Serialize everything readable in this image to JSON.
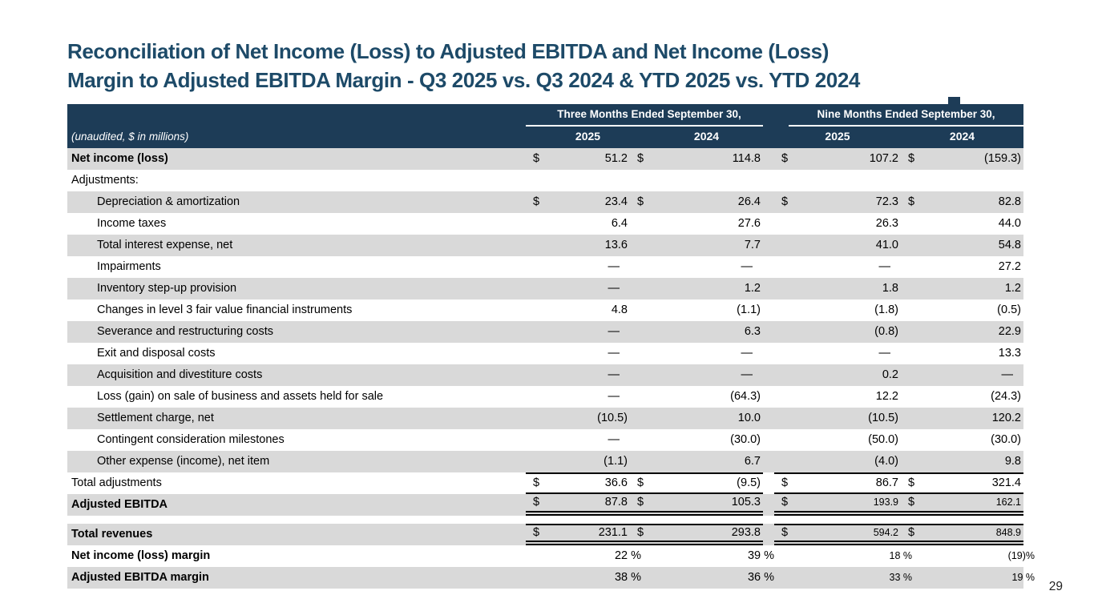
{
  "slide": {
    "title_line1": "Reconciliation of Net Income (Loss) to Adjusted EBITDA and Net Income (Loss)",
    "title_line2": "Margin to Adjusted EBITDA Margin - Q3 2025 vs. Q3 2024 & YTD 2025 vs. YTD 2024",
    "page_number": "29"
  },
  "colors": {
    "header_bg": "#1d3c57",
    "title_text": "#1d4a68",
    "row_shade": "#d9d9d9"
  },
  "table": {
    "unit_note": "(unaudited, $ in millions)",
    "dollar_sign": "$",
    "col_groups": [
      "Three Months Ended September 30,",
      "Nine Months Ended September 30,"
    ],
    "years": [
      "2025",
      "2024",
      "2025",
      "2024"
    ],
    "rows": [
      {
        "label": "Net income (loss)",
        "bold": true,
        "shaded": true,
        "dollar": true,
        "values": [
          "51.2",
          "114.8",
          "107.2",
          "(159.3)"
        ]
      },
      {
        "label": "Adjustments:",
        "shaded": false
      },
      {
        "label": "Depreciation & amortization",
        "indent": true,
        "shaded": true,
        "dollar": true,
        "values": [
          "23.4",
          "26.4",
          "72.3",
          "82.8"
        ]
      },
      {
        "label": "Income taxes",
        "indent": true,
        "shaded": false,
        "values": [
          "6.4",
          "27.6",
          "26.3",
          "44.0"
        ]
      },
      {
        "label": "Total interest expense, net",
        "indent": true,
        "shaded": true,
        "values": [
          "13.6",
          "7.7",
          "41.0",
          "54.8"
        ]
      },
      {
        "label": "Impairments",
        "indent": true,
        "shaded": false,
        "values": [
          "—",
          "—",
          "—",
          "27.2"
        ]
      },
      {
        "label": "Inventory step-up provision",
        "indent": true,
        "shaded": true,
        "values": [
          "—",
          "1.2",
          "1.8",
          "1.2"
        ]
      },
      {
        "label": "Changes in level 3 fair value financial instruments",
        "indent": true,
        "shaded": false,
        "values": [
          "4.8",
          "(1.1)",
          "(1.8)",
          "(0.5)"
        ]
      },
      {
        "label": "Severance and restructuring costs",
        "indent": true,
        "shaded": true,
        "values": [
          "—",
          "6.3",
          "(0.8)",
          "22.9"
        ]
      },
      {
        "label": "Exit and disposal costs",
        "indent": true,
        "shaded": false,
        "values": [
          "—",
          "—",
          "—",
          "13.3"
        ]
      },
      {
        "label": "Acquisition and divestiture costs",
        "indent": true,
        "shaded": true,
        "values": [
          "—",
          "—",
          "0.2",
          "—"
        ]
      },
      {
        "label": "Loss (gain) on sale of business and assets held for sale",
        "indent": true,
        "shaded": false,
        "values": [
          "—",
          "(64.3)",
          "12.2",
          "(24.3)"
        ]
      },
      {
        "label": "Settlement charge, net",
        "indent": true,
        "shaded": true,
        "values": [
          "(10.5)",
          "10.0",
          "(10.5)",
          "120.2"
        ]
      },
      {
        "label": "Contingent consideration milestones",
        "indent": true,
        "shaded": false,
        "values": [
          "—",
          "(30.0)",
          "(50.0)",
          "(30.0)"
        ]
      },
      {
        "label": "Other expense (income), net item",
        "indent": true,
        "shaded": true,
        "values": [
          "(1.1)",
          "6.7",
          "(4.0)",
          "9.8"
        ]
      },
      {
        "label": "Total adjustments",
        "shaded": false,
        "dollar": true,
        "rule": "s",
        "values": [
          "36.6",
          "(9.5)",
          "86.7",
          "321.4"
        ]
      },
      {
        "label": "Adjusted EBITDA",
        "bold": true,
        "shaded": true,
        "dollar": true,
        "rule": "db",
        "small_right": true,
        "values": [
          "87.8",
          "105.3",
          "193.9",
          "162.1"
        ]
      },
      {
        "spacer": true
      },
      {
        "label": "Total revenues",
        "bold": true,
        "shaded": true,
        "dollar": true,
        "rule": "tdb",
        "small_right": true,
        "values": [
          "231.1",
          "293.8",
          "594.2",
          "848.9"
        ]
      },
      {
        "label": "Net income (loss) margin",
        "bold": true,
        "shaded": false,
        "pct": true,
        "small_right": true,
        "values": [
          "22 %",
          "39 %",
          "18 %",
          "(19)%"
        ]
      },
      {
        "label": "Adjusted EBITDA margin",
        "bold": true,
        "shaded": true,
        "pct": true,
        "small_right": true,
        "values": [
          "38 %",
          "36 %",
          "33 %",
          "19 %"
        ]
      }
    ]
  }
}
